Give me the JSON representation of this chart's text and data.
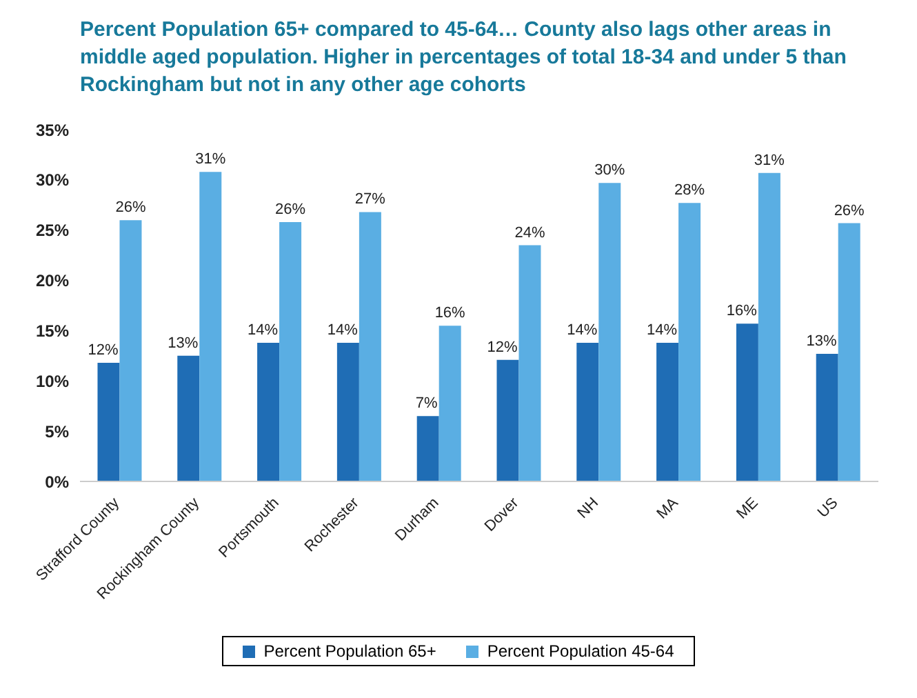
{
  "chart_data": {
    "type": "bar",
    "title": "Percent Population 65+ compared to 45-64… County also lags other areas in middle aged population.  Higher in percentages of total 18-34 and under 5 than Rockingham but not in any other age cohorts",
    "categories": [
      "Strafford County",
      "Rockingham County",
      "Portsmouth",
      "Rochester",
      "Durham",
      "Dover",
      "NH",
      "MA",
      "ME",
      "US"
    ],
    "series": [
      {
        "name": "Percent Population 65+",
        "color": "#1f6db5",
        "values": [
          11.8,
          12.5,
          13.8,
          13.8,
          6.5,
          12.1,
          13.8,
          13.8,
          15.7,
          12.7
        ],
        "value_labels": [
          "12%",
          "13%",
          "14%",
          "14%",
          "7%",
          "12%",
          "14%",
          "14%",
          "16%",
          "13%"
        ]
      },
      {
        "name": "Percent Population 45-64",
        "color": "#5aaee3",
        "values": [
          26.0,
          30.8,
          25.8,
          26.8,
          15.5,
          23.5,
          29.7,
          27.7,
          30.7,
          25.7
        ],
        "value_labels": [
          "26%",
          "31%",
          "26%",
          "27%",
          "16%",
          "24%",
          "30%",
          "28%",
          "31%",
          "26%"
        ]
      }
    ],
    "ylim": [
      0,
      35
    ],
    "yticks": [
      {
        "value": 0,
        "label": "0%"
      },
      {
        "value": 5,
        "label": "5%"
      },
      {
        "value": 10,
        "label": "10%"
      },
      {
        "value": 15,
        "label": "15%"
      },
      {
        "value": 20,
        "label": "20%"
      },
      {
        "value": 25,
        "label": "25%"
      },
      {
        "value": 30,
        "label": "30%"
      },
      {
        "value": 35,
        "label": "35%"
      }
    ],
    "grid": false,
    "legend": "bottom"
  }
}
